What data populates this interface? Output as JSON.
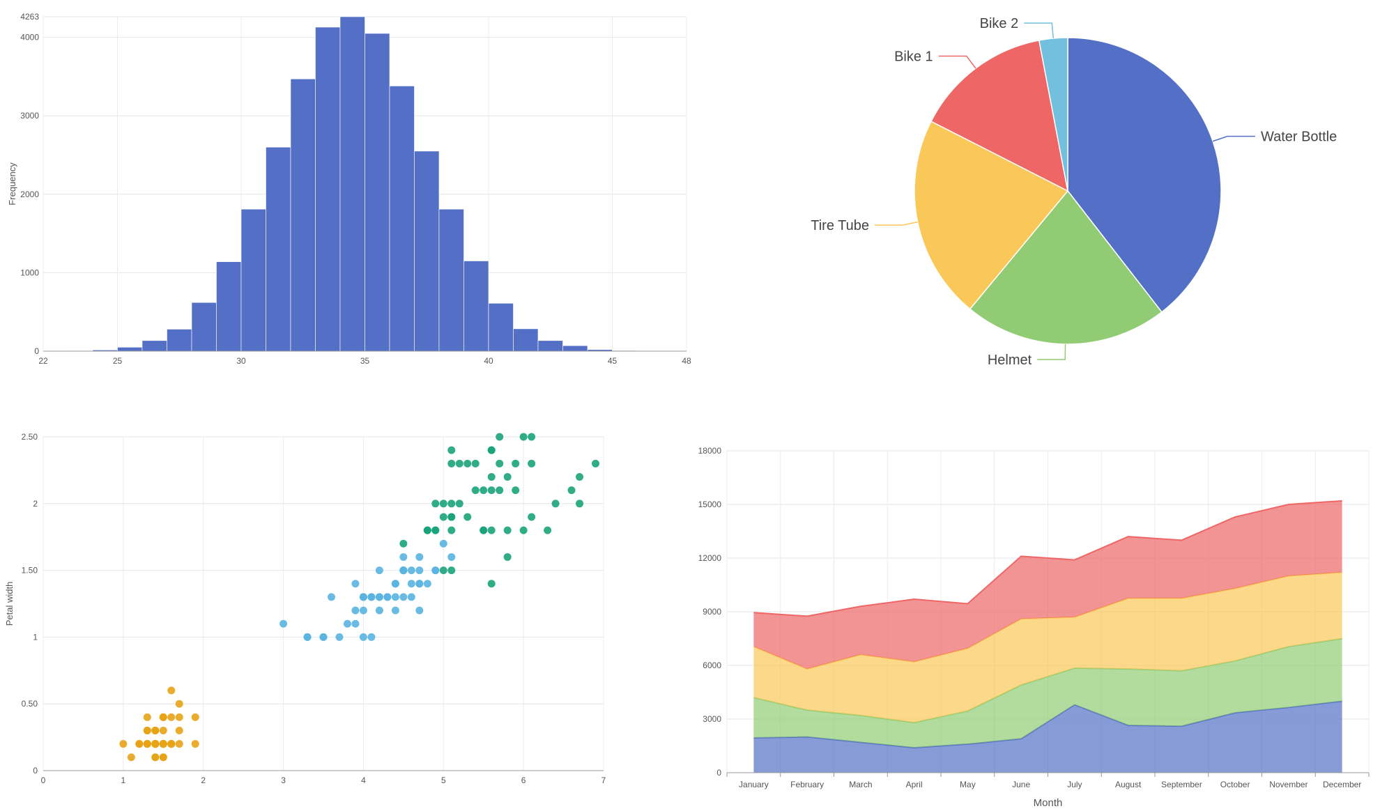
{
  "chart_data": [
    {
      "type": "bar",
      "subtype": "histogram",
      "title": "",
      "xlabel": "",
      "ylabel": "Frequency",
      "bin_edges": [
        22,
        23,
        24,
        25,
        26,
        27,
        28,
        29,
        30,
        31,
        32,
        33,
        34,
        35,
        36,
        37,
        38,
        39,
        40,
        41,
        42,
        43,
        44,
        45,
        46,
        47,
        48
      ],
      "values": [
        2,
        5,
        15,
        50,
        135,
        280,
        620,
        1140,
        1810,
        2600,
        3470,
        4130,
        4263,
        4050,
        3380,
        2550,
        1810,
        1150,
        610,
        285,
        135,
        70,
        20,
        8,
        4,
        1
      ],
      "xlim": [
        22,
        48
      ],
      "ylim": [
        0,
        4263
      ],
      "x_ticks": [
        "22",
        "25",
        "30",
        "35",
        "40",
        "45",
        "48"
      ],
      "y_ticks": [
        "0",
        "1000",
        "2000",
        "3000",
        "4000",
        "4263"
      ],
      "color": "#5470c6",
      "grid": true
    },
    {
      "type": "pie",
      "labels": [
        "Water Bottle",
        "Helmet",
        "Tire Tube",
        "Bike 1",
        "Bike 2"
      ],
      "values": [
        39.5,
        21.5,
        21.5,
        14.5,
        3.0
      ],
      "colors": [
        "#5470c6",
        "#91cc75",
        "#fac858",
        "#ee6666",
        "#73c0de"
      ]
    },
    {
      "type": "scatter",
      "xlabel": "",
      "ylabel": "Petal width",
      "xlim": [
        0,
        7
      ],
      "ylim": [
        0,
        2.5
      ],
      "x_ticks": [
        "0",
        "1",
        "2",
        "3",
        "4",
        "5",
        "6",
        "7"
      ],
      "y_ticks": [
        "0",
        "0.50",
        "1",
        "1.50",
        "2",
        "2.50"
      ],
      "grid": true,
      "series": [
        {
          "color": "#e8a317",
          "points": [
            [
              1.4,
              0.2
            ],
            [
              1.4,
              0.2
            ],
            [
              1.3,
              0.2
            ],
            [
              1.5,
              0.2
            ],
            [
              1.4,
              0.2
            ],
            [
              1.7,
              0.4
            ],
            [
              1.4,
              0.3
            ],
            [
              1.5,
              0.2
            ],
            [
              1.4,
              0.2
            ],
            [
              1.5,
              0.1
            ],
            [
              1.5,
              0.2
            ],
            [
              1.6,
              0.2
            ],
            [
              1.4,
              0.1
            ],
            [
              1.1,
              0.1
            ],
            [
              1.2,
              0.2
            ],
            [
              1.5,
              0.4
            ],
            [
              1.3,
              0.4
            ],
            [
              1.4,
              0.3
            ],
            [
              1.7,
              0.3
            ],
            [
              1.5,
              0.3
            ],
            [
              1.7,
              0.2
            ],
            [
              1.5,
              0.4
            ],
            [
              1.0,
              0.2
            ],
            [
              1.7,
              0.5
            ],
            [
              1.9,
              0.2
            ],
            [
              1.6,
              0.2
            ],
            [
              1.6,
              0.4
            ],
            [
              1.5,
              0.2
            ],
            [
              1.4,
              0.2
            ],
            [
              1.6,
              0.2
            ],
            [
              1.6,
              0.2
            ],
            [
              1.5,
              0.4
            ],
            [
              1.5,
              0.1
            ],
            [
              1.4,
              0.2
            ],
            [
              1.5,
              0.2
            ],
            [
              1.2,
              0.2
            ],
            [
              1.3,
              0.2
            ],
            [
              1.4,
              0.1
            ],
            [
              1.3,
              0.2
            ],
            [
              1.5,
              0.2
            ],
            [
              1.3,
              0.3
            ],
            [
              1.3,
              0.3
            ],
            [
              1.3,
              0.2
            ],
            [
              1.6,
              0.6
            ],
            [
              1.9,
              0.4
            ],
            [
              1.4,
              0.3
            ],
            [
              1.6,
              0.2
            ],
            [
              1.4,
              0.2
            ],
            [
              1.5,
              0.2
            ],
            [
              1.4,
              0.2
            ]
          ]
        },
        {
          "color": "#5ab4e0",
          "points": [
            [
              4.7,
              1.4
            ],
            [
              4.5,
              1.5
            ],
            [
              4.9,
              1.5
            ],
            [
              4.0,
              1.3
            ],
            [
              4.6,
              1.5
            ],
            [
              4.5,
              1.3
            ],
            [
              4.7,
              1.6
            ],
            [
              3.3,
              1.0
            ],
            [
              4.6,
              1.3
            ],
            [
              3.9,
              1.4
            ],
            [
              3.5,
              1.0
            ],
            [
              4.2,
              1.5
            ],
            [
              4.0,
              1.0
            ],
            [
              4.7,
              1.4
            ],
            [
              3.6,
              1.3
            ],
            [
              4.4,
              1.4
            ],
            [
              4.5,
              1.5
            ],
            [
              4.1,
              1.0
            ],
            [
              4.5,
              1.5
            ],
            [
              3.9,
              1.1
            ],
            [
              4.8,
              1.8
            ],
            [
              4.0,
              1.3
            ],
            [
              4.9,
              1.5
            ],
            [
              4.7,
              1.2
            ],
            [
              4.3,
              1.3
            ],
            [
              4.4,
              1.4
            ],
            [
              4.8,
              1.4
            ],
            [
              5.0,
              1.7
            ],
            [
              4.5,
              1.5
            ],
            [
              3.5,
              1.0
            ],
            [
              3.8,
              1.1
            ],
            [
              3.7,
              1.0
            ],
            [
              3.9,
              1.2
            ],
            [
              5.1,
              1.6
            ],
            [
              4.5,
              1.5
            ],
            [
              4.5,
              1.6
            ],
            [
              4.7,
              1.5
            ],
            [
              4.4,
              1.3
            ],
            [
              4.1,
              1.3
            ],
            [
              4.0,
              1.3
            ],
            [
              4.4,
              1.2
            ],
            [
              4.6,
              1.4
            ],
            [
              4.0,
              1.2
            ],
            [
              3.3,
              1.0
            ],
            [
              4.2,
              1.3
            ],
            [
              4.2,
              1.2
            ],
            [
              4.2,
              1.3
            ],
            [
              4.3,
              1.3
            ],
            [
              3.0,
              1.1
            ],
            [
              4.1,
              1.3
            ]
          ]
        },
        {
          "color": "#1aa37a",
          "points": [
            [
              6.0,
              2.5
            ],
            [
              5.1,
              1.9
            ],
            [
              5.9,
              2.1
            ],
            [
              5.6,
              1.8
            ],
            [
              5.8,
              2.2
            ],
            [
              6.6,
              2.1
            ],
            [
              4.5,
              1.7
            ],
            [
              6.3,
              1.8
            ],
            [
              5.8,
              1.8
            ],
            [
              6.1,
              2.5
            ],
            [
              5.1,
              2.0
            ],
            [
              5.3,
              1.9
            ],
            [
              5.5,
              2.1
            ],
            [
              5.0,
              2.0
            ],
            [
              5.1,
              2.4
            ],
            [
              5.3,
              2.3
            ],
            [
              5.5,
              1.8
            ],
            [
              6.7,
              2.2
            ],
            [
              6.9,
              2.3
            ],
            [
              5.0,
              1.5
            ],
            [
              5.7,
              2.3
            ],
            [
              4.9,
              2.0
            ],
            [
              6.7,
              2.0
            ],
            [
              4.9,
              1.8
            ],
            [
              5.7,
              2.1
            ],
            [
              6.0,
              1.8
            ],
            [
              4.8,
              1.8
            ],
            [
              4.9,
              1.8
            ],
            [
              5.6,
              2.1
            ],
            [
              5.8,
              1.6
            ],
            [
              6.1,
              1.9
            ],
            [
              6.4,
              2.0
            ],
            [
              5.6,
              2.2
            ],
            [
              5.1,
              1.5
            ],
            [
              5.6,
              1.4
            ],
            [
              6.1,
              2.3
            ],
            [
              5.6,
              2.4
            ],
            [
              5.5,
              1.8
            ],
            [
              4.8,
              1.8
            ],
            [
              5.4,
              2.1
            ],
            [
              5.6,
              2.4
            ],
            [
              5.1,
              2.3
            ],
            [
              5.1,
              1.9
            ],
            [
              5.9,
              2.3
            ],
            [
              5.7,
              2.5
            ],
            [
              5.2,
              2.3
            ],
            [
              5.0,
              1.9
            ],
            [
              5.2,
              2.0
            ],
            [
              5.4,
              2.3
            ],
            [
              5.1,
              1.8
            ]
          ]
        }
      ]
    },
    {
      "type": "area",
      "stacked": true,
      "xlabel": "Month",
      "ylabel": "",
      "categories": [
        "January",
        "February",
        "March",
        "April",
        "May",
        "June",
        "July",
        "August",
        "September",
        "October",
        "November",
        "December"
      ],
      "ylim": [
        0,
        18000
      ],
      "y_ticks": [
        "0",
        "3000",
        "6000",
        "9000",
        "12000",
        "15000",
        "18000"
      ],
      "grid": true,
      "series": [
        {
          "color": "#5470c6",
          "values": [
            1950,
            2000,
            1700,
            1400,
            1600,
            1900,
            3800,
            2650,
            2600,
            3350,
            3650,
            4000
          ]
        },
        {
          "color": "#91cc75",
          "values": [
            2250,
            1500,
            1500,
            1400,
            1850,
            3000,
            2050,
            3150,
            3100,
            2900,
            3400,
            3500
          ]
        },
        {
          "color": "#fac858",
          "values": [
            2850,
            2300,
            3400,
            3400,
            3500,
            3700,
            2850,
            3950,
            4050,
            4050,
            3950,
            3700
          ]
        },
        {
          "color": "#ee6666",
          "values": [
            1900,
            2950,
            2700,
            3500,
            2500,
            3500,
            3200,
            3450,
            3250,
            4000,
            4000,
            4000
          ]
        }
      ]
    }
  ]
}
